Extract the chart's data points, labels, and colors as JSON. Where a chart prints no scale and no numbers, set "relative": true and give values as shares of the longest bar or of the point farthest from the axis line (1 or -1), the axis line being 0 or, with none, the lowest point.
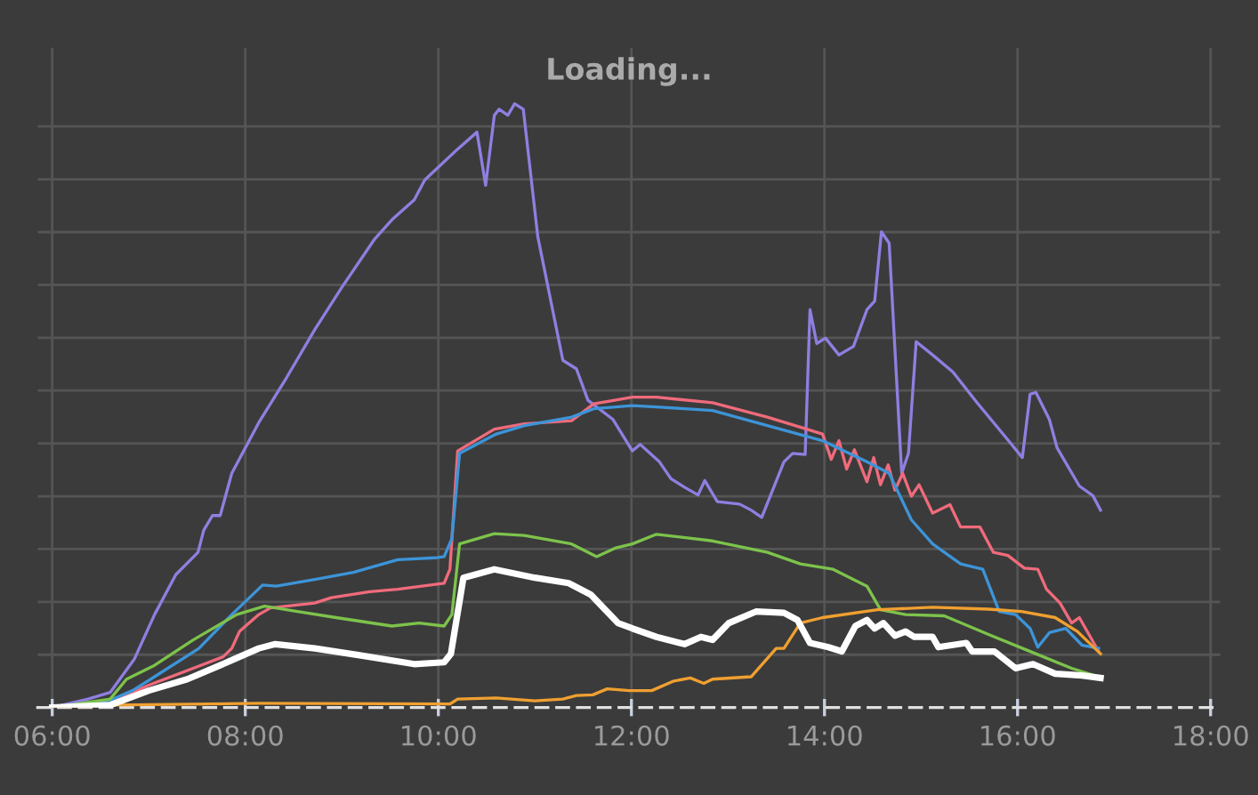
{
  "chart_data": {
    "type": "line",
    "relative": true,
    "annotations": [
      "Loading..."
    ],
    "xlim": [
      5.85,
      18.1
    ],
    "xticks": [
      {
        "value": 6,
        "label": "06:00"
      },
      {
        "value": 8,
        "label": "08:00"
      },
      {
        "value": 10,
        "label": "10:00"
      },
      {
        "value": 12,
        "label": "12:00"
      },
      {
        "value": 14,
        "label": "14:00"
      },
      {
        "value": 16,
        "label": "16:00"
      },
      {
        "value": 18,
        "label": "18:00"
      }
    ],
    "tick_labels": "x",
    "grid": true,
    "marker": "none",
    "line_style": "solid",
    "series": [
      {
        "color": "#8f7fe0",
        "x": [
          6,
          6.37,
          6.6,
          6.85,
          7.06,
          7.28,
          7.51,
          7.57,
          7.66,
          7.74,
          7.86,
          8.14,
          8.43,
          8.72,
          9.0,
          9.34,
          9.52,
          9.75,
          9.86,
          10.2,
          10.4,
          10.49,
          10.58,
          10.63,
          10.72,
          10.79,
          10.88,
          11.03,
          11.29,
          11.43,
          11.55,
          11.81,
          12.01,
          12.09,
          12.29,
          12.41,
          12.55,
          12.69,
          12.76,
          12.89,
          13.12,
          13.24,
          13.35,
          13.58,
          13.67,
          13.8,
          13.85,
          13.92,
          14.01,
          14.15,
          14.3,
          14.44,
          14.52,
          14.59,
          14.67,
          14.8,
          14.87,
          14.95,
          15.12,
          15.33,
          15.58,
          15.87,
          16.05,
          16.13,
          16.19,
          16.33,
          16.41,
          16.64,
          16.78,
          16.86
        ],
        "values": [
          0,
          0.014,
          0.025,
          0.08,
          0.154,
          0.22,
          0.257,
          0.294,
          0.318,
          0.318,
          0.388,
          0.472,
          0.547,
          0.626,
          0.696,
          0.776,
          0.808,
          0.841,
          0.874,
          0.925,
          0.953,
          0.865,
          0.981,
          0.991,
          0.981,
          1.0,
          0.991,
          0.78,
          0.575,
          0.561,
          0.509,
          0.477,
          0.425,
          0.436,
          0.407,
          0.379,
          0.365,
          0.352,
          0.376,
          0.341,
          0.337,
          0.327,
          0.315,
          0.407,
          0.421,
          0.419,
          0.659,
          0.603,
          0.612,
          0.584,
          0.598,
          0.659,
          0.673,
          0.788,
          0.769,
          0.388,
          0.421,
          0.606,
          0.584,
          0.556,
          0.505,
          0.449,
          0.414,
          0.519,
          0.522,
          0.477,
          0.43,
          0.367,
          0.351,
          0.327
        ]
      },
      {
        "color": "#f06b7c",
        "x": [
          6,
          6.6,
          7.0,
          7.46,
          7.77,
          7.86,
          7.94,
          8.14,
          8.26,
          8.72,
          8.89,
          9.29,
          9.58,
          10.06,
          10.12,
          10.2,
          10.58,
          10.89,
          11.38,
          11.61,
          12.01,
          12.26,
          12.84,
          13.41,
          13.78,
          13.98,
          14.07,
          14.15,
          14.23,
          14.31,
          14.44,
          14.51,
          14.58,
          14.66,
          14.73,
          14.81,
          14.9,
          14.98,
          15.12,
          15.3,
          15.41,
          15.61,
          15.75,
          15.9,
          16.07,
          16.21,
          16.3,
          16.44,
          16.56,
          16.64,
          16.84
        ],
        "values": [
          0,
          0.009,
          0.037,
          0.065,
          0.084,
          0.098,
          0.126,
          0.154,
          0.165,
          0.173,
          0.182,
          0.192,
          0.196,
          0.206,
          0.229,
          0.425,
          0.461,
          0.47,
          0.475,
          0.503,
          0.514,
          0.514,
          0.505,
          0.481,
          0.463,
          0.453,
          0.411,
          0.442,
          0.395,
          0.427,
          0.374,
          0.414,
          0.369,
          0.402,
          0.36,
          0.388,
          0.35,
          0.369,
          0.322,
          0.336,
          0.299,
          0.299,
          0.257,
          0.252,
          0.231,
          0.229,
          0.196,
          0.173,
          0.14,
          0.149,
          0.093
        ]
      },
      {
        "color": "#3d94d8",
        "x": [
          6,
          6.6,
          6.83,
          7.06,
          7.52,
          7.86,
          8.18,
          8.32,
          8.72,
          9.12,
          9.58,
          9.97,
          10.06,
          10.14,
          10.22,
          10.6,
          10.89,
          11.38,
          11.61,
          12.01,
          12.26,
          12.84,
          13.41,
          13.98,
          14.44,
          14.67,
          14.9,
          15.12,
          15.41,
          15.64,
          15.81,
          15.98,
          16.13,
          16.21,
          16.33,
          16.5,
          16.67,
          16.84
        ],
        "values": [
          0,
          0.012,
          0.028,
          0.051,
          0.098,
          0.154,
          0.203,
          0.201,
          0.212,
          0.224,
          0.245,
          0.248,
          0.25,
          0.28,
          0.421,
          0.453,
          0.467,
          0.481,
          0.495,
          0.5,
          0.498,
          0.492,
          0.467,
          0.442,
          0.407,
          0.388,
          0.311,
          0.271,
          0.238,
          0.229,
          0.159,
          0.154,
          0.131,
          0.1,
          0.124,
          0.131,
          0.103,
          0.098
        ]
      },
      {
        "color": "#7dc34b",
        "x": [
          6,
          6.6,
          6.77,
          7.06,
          7.46,
          7.91,
          8.2,
          8.54,
          8.94,
          9.52,
          9.8,
          10.06,
          10.14,
          10.22,
          10.58,
          10.89,
          11.38,
          11.64,
          11.83,
          12.01,
          12.26,
          12.84,
          13.41,
          13.75,
          14.09,
          14.44,
          14.58,
          14.84,
          15.24,
          15.7,
          16.16,
          16.56,
          16.84
        ],
        "values": [
          0,
          0.014,
          0.047,
          0.07,
          0.112,
          0.154,
          0.168,
          0.159,
          0.149,
          0.135,
          0.14,
          0.135,
          0.154,
          0.271,
          0.288,
          0.285,
          0.271,
          0.25,
          0.264,
          0.271,
          0.287,
          0.276,
          0.257,
          0.238,
          0.229,
          0.201,
          0.162,
          0.154,
          0.152,
          0.121,
          0.091,
          0.065,
          0.051
        ]
      },
      {
        "color": "#ffffff",
        "x": [
          6,
          6.6,
          7.0,
          7.4,
          7.74,
          8.14,
          8.31,
          8.72,
          9.17,
          9.75,
          10.06,
          10.13,
          10.26,
          10.58,
          11.0,
          11.35,
          11.58,
          11.86,
          12.01,
          12.26,
          12.55,
          12.72,
          12.84,
          13.01,
          13.29,
          13.58,
          13.72,
          13.85,
          14.04,
          14.18,
          14.32,
          14.44,
          14.52,
          14.61,
          14.73,
          14.84,
          14.93,
          15.12,
          15.18,
          15.47,
          15.53,
          15.76,
          15.98,
          16.16,
          16.39,
          16.67,
          16.86
        ],
        "values": [
          0,
          0.004,
          0.028,
          0.047,
          0.07,
          0.098,
          0.105,
          0.098,
          0.087,
          0.072,
          0.075,
          0.089,
          0.215,
          0.229,
          0.215,
          0.206,
          0.187,
          0.14,
          0.131,
          0.117,
          0.105,
          0.117,
          0.112,
          0.14,
          0.159,
          0.157,
          0.145,
          0.107,
          0.1,
          0.093,
          0.135,
          0.145,
          0.131,
          0.14,
          0.119,
          0.126,
          0.117,
          0.117,
          0.1,
          0.107,
          0.093,
          0.093,
          0.065,
          0.072,
          0.056,
          0.053,
          0.049
        ]
      },
      {
        "color": "#f0a030",
        "x": [
          6,
          6.6,
          8.14,
          10.12,
          10.2,
          10.6,
          11.0,
          11.29,
          11.43,
          11.6,
          11.75,
          11.98,
          12.21,
          12.44,
          12.61,
          12.75,
          12.84,
          13.24,
          13.5,
          13.58,
          13.75,
          13.98,
          14.55,
          15.12,
          15.7,
          16.04,
          16.39,
          16.62,
          16.86
        ],
        "values": [
          0,
          0.004,
          0.007,
          0.006,
          0.014,
          0.016,
          0.011,
          0.014,
          0.02,
          0.021,
          0.031,
          0.028,
          0.028,
          0.044,
          0.049,
          0.04,
          0.047,
          0.051,
          0.098,
          0.098,
          0.14,
          0.149,
          0.162,
          0.166,
          0.163,
          0.159,
          0.149,
          0.126,
          0.089
        ]
      }
    ]
  }
}
